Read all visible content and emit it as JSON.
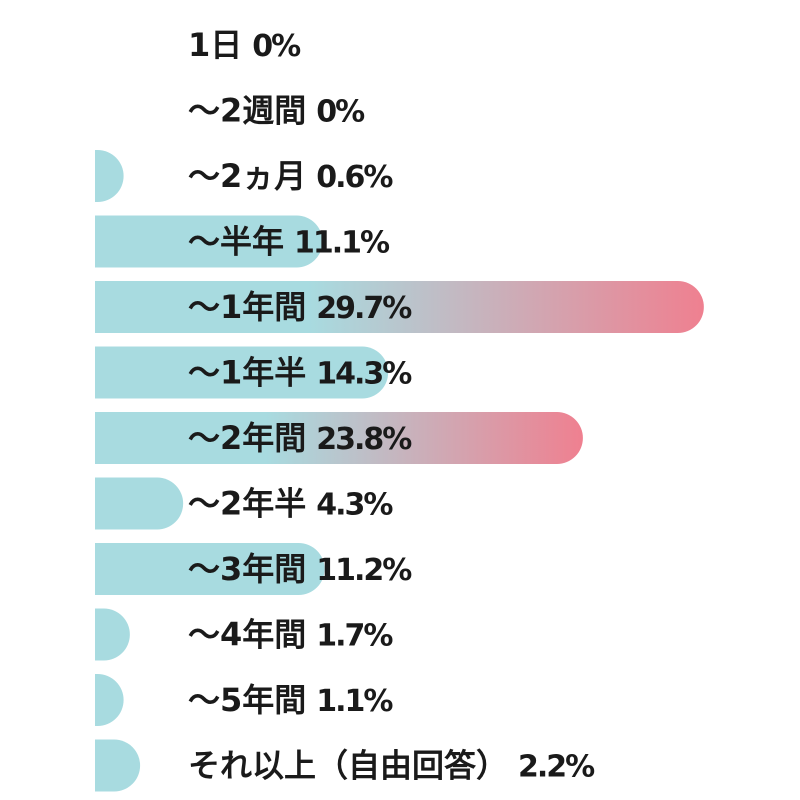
{
  "chart_data": {
    "type": "bar",
    "orientation": "horizontal",
    "categories": [
      "1日",
      "～2週間",
      "～2ヵ月",
      "～半年",
      "～1年間",
      "～1年半",
      "～2年間",
      "～2年半",
      "～3年間",
      "～4年間",
      "～5年間",
      "それ以上（自由回答）"
    ],
    "values": [
      0,
      0,
      0.6,
      11.1,
      29.7,
      14.3,
      23.8,
      4.3,
      11.2,
      1.7,
      1.1,
      2.2
    ],
    "value_labels": [
      "0%",
      "0%",
      "0.6%",
      "11.1%",
      "29.7%",
      "14.3%",
      "23.8%",
      "4.3%",
      "11.2%",
      "1.7%",
      "1.1%",
      "2.2%"
    ],
    "unit": "%",
    "grid": false,
    "legend": "none",
    "highlighted_categories": [
      "～1年間",
      "～2年間"
    ]
  },
  "colors": {
    "bar": "#a8dbe0",
    "highlight": "#ef8090",
    "text": "#1a1a1a",
    "background": "#ffffff"
  }
}
